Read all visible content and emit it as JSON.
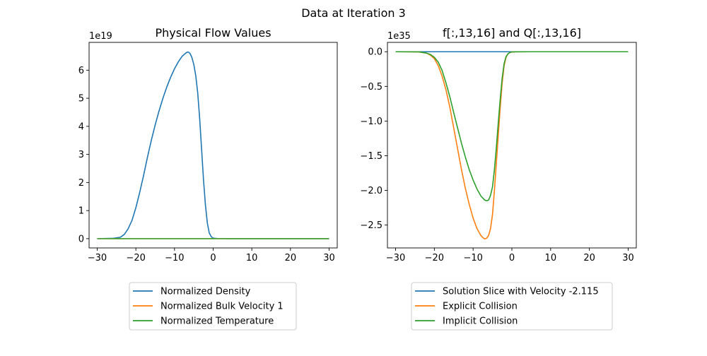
{
  "figure": {
    "title": "Data at Iteration 3"
  },
  "chart_data": [
    {
      "type": "line",
      "title": "Physical Flow Values",
      "xlabel": "",
      "ylabel": "",
      "offset_text": "1e19",
      "xlim": [
        -32.1,
        32.1
      ],
      "ylim": [
        -0.33,
        6.99
      ],
      "xticks": [
        -30,
        -20,
        -10,
        0,
        10,
        20,
        30
      ],
      "xtick_labels": [
        "−30",
        "−20",
        "−10",
        "0",
        "10",
        "20",
        "30"
      ],
      "yticks": [
        0,
        1,
        2,
        3,
        4,
        5,
        6
      ],
      "ytick_labels": [
        "0",
        "1",
        "2",
        "3",
        "4",
        "5",
        "6"
      ],
      "grid": false,
      "legend_position": "below",
      "series": [
        {
          "name": "Normalized Density",
          "color": "#1f77b4",
          "x": [
            -30,
            -26,
            -24,
            -23,
            -22,
            -21,
            -20,
            -19,
            -18,
            -17,
            -16,
            -15,
            -14,
            -13,
            -12,
            -11,
            -10,
            -9,
            -8,
            -7,
            -6.5,
            -6,
            -5.5,
            -5,
            -4.5,
            -4,
            -3.5,
            -3,
            -2.5,
            -2,
            -1.5,
            -1,
            -0.5,
            0,
            0.5,
            1,
            2,
            5,
            30
          ],
          "y": [
            0,
            0.01,
            0.05,
            0.15,
            0.35,
            0.65,
            1.1,
            1.65,
            2.25,
            2.9,
            3.5,
            4.05,
            4.55,
            5.0,
            5.4,
            5.75,
            6.05,
            6.3,
            6.5,
            6.62,
            6.65,
            6.6,
            6.45,
            6.2,
            5.8,
            5.2,
            4.3,
            3.2,
            2.1,
            1.2,
            0.55,
            0.2,
            0.07,
            0.02,
            0.01,
            0.005,
            0.003,
            0.002,
            0
          ]
        },
        {
          "name": "Normalized Bulk Velocity 1",
          "color": "#ff7f0e",
          "x": [
            -30,
            30
          ],
          "y": [
            0,
            0
          ]
        },
        {
          "name": "Normalized Temperature",
          "color": "#2ca02c",
          "x": [
            -30,
            30
          ],
          "y": [
            0,
            0
          ]
        }
      ]
    },
    {
      "type": "line",
      "title": "f[:,13,16] and Q[:,13,16]",
      "xlabel": "",
      "ylabel": "",
      "offset_text": "1e35",
      "xlim": [
        -32.1,
        32.1
      ],
      "ylim": [
        -2.83,
        0.135
      ],
      "xticks": [
        -30,
        -20,
        -10,
        0,
        10,
        20,
        30
      ],
      "xtick_labels": [
        "−30",
        "−20",
        "−10",
        "0",
        "10",
        "20",
        "30"
      ],
      "yticks": [
        0.0,
        -0.5,
        -1.0,
        -1.5,
        -2.0,
        -2.5
      ],
      "ytick_labels": [
        "0.0",
        "−0.5",
        "−1.0",
        "−1.5",
        "−2.0",
        "−2.5"
      ],
      "grid": false,
      "legend_position": "below",
      "series": [
        {
          "name": "Solution Slice with Velocity -2.115",
          "color": "#1f77b4",
          "x": [
            -30,
            30
          ],
          "y": [
            0,
            0
          ]
        },
        {
          "name": "Explicit Collision",
          "color": "#ff7f0e",
          "x": [
            -30,
            -24,
            -22,
            -21,
            -20,
            -19,
            -18,
            -17,
            -16,
            -15,
            -14,
            -13,
            -12,
            -11,
            -10,
            -9,
            -8,
            -7.5,
            -7,
            -6.5,
            -6,
            -5.5,
            -5,
            -4.5,
            -4,
            -3.5,
            -3,
            -2.5,
            -2,
            -1.5,
            -1,
            -0.5,
            0,
            1,
            5,
            30
          ],
          "y": [
            0,
            -0.002,
            -0.02,
            -0.05,
            -0.1,
            -0.2,
            -0.35,
            -0.55,
            -0.8,
            -1.1,
            -1.4,
            -1.7,
            -1.97,
            -2.2,
            -2.4,
            -2.55,
            -2.65,
            -2.68,
            -2.7,
            -2.69,
            -2.65,
            -2.55,
            -2.35,
            -2.0,
            -1.6,
            -1.2,
            -0.8,
            -0.45,
            -0.2,
            -0.08,
            -0.03,
            -0.01,
            -0.003,
            -0.001,
            0,
            0
          ]
        },
        {
          "name": "Implicit Collision",
          "color": "#2ca02c",
          "x": [
            -30,
            -24,
            -22,
            -21,
            -20,
            -19,
            -18,
            -17,
            -16,
            -15,
            -14,
            -13,
            -12,
            -11,
            -10,
            -9,
            -8,
            -7,
            -6.5,
            -6,
            -5.5,
            -5,
            -4.5,
            -4,
            -3.5,
            -3,
            -2.5,
            -2,
            -1.5,
            -1,
            -0.5,
            0,
            1,
            5,
            30
          ],
          "y": [
            0,
            -0.002,
            -0.02,
            -0.04,
            -0.08,
            -0.15,
            -0.27,
            -0.45,
            -0.65,
            -0.88,
            -1.1,
            -1.32,
            -1.52,
            -1.7,
            -1.85,
            -1.98,
            -2.08,
            -2.14,
            -2.15,
            -2.14,
            -2.07,
            -1.95,
            -1.7,
            -1.38,
            -1.02,
            -0.68,
            -0.38,
            -0.17,
            -0.07,
            -0.03,
            -0.01,
            -0.003,
            -0.001,
            0,
            0
          ]
        }
      ]
    }
  ]
}
